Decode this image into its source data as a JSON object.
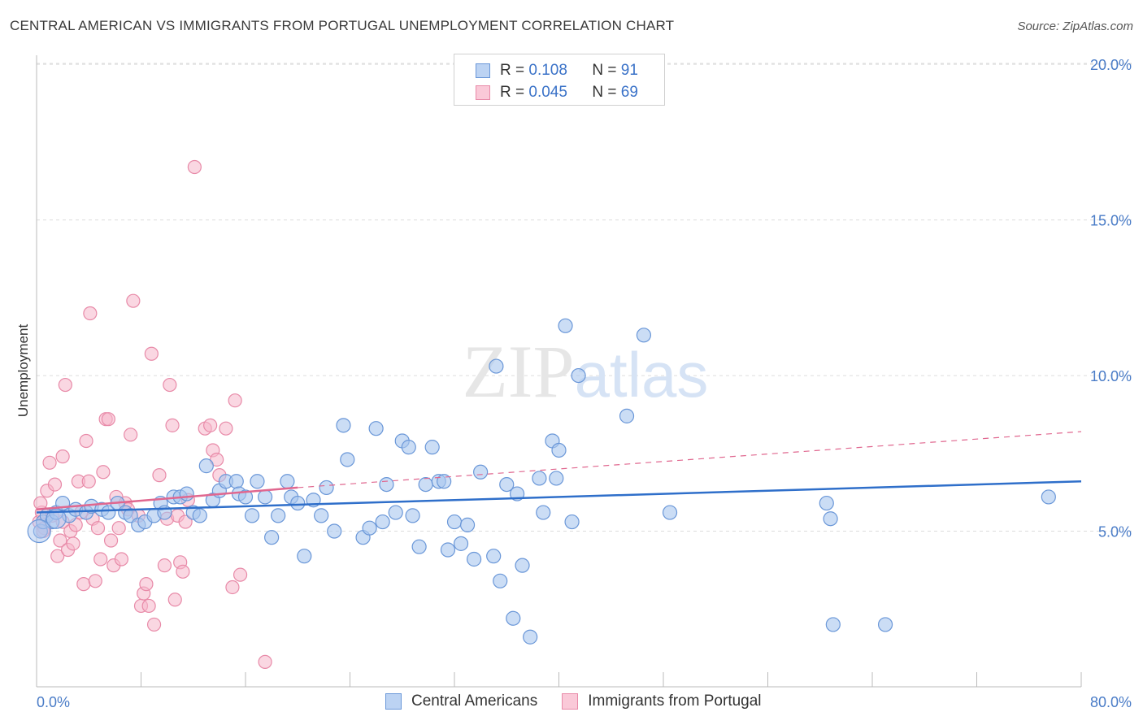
{
  "title": "CENTRAL AMERICAN VS IMMIGRANTS FROM PORTUGAL UNEMPLOYMENT CORRELATION CHART",
  "source": "Source: ZipAtlas.com",
  "legend": {
    "r_label": "R =",
    "n_label": "N =",
    "rows": [
      {
        "r": "0.108",
        "n": "91"
      },
      {
        "r": "0.045",
        "n": "69"
      }
    ]
  },
  "colors": {
    "blue_fill": "#a9c6ef",
    "blue_stroke": "#6a97d8",
    "blue_line": "#2f6fca",
    "pink_fill": "#f6b6cb",
    "pink_stroke": "#e88aa8",
    "pink_line": "#e0678f",
    "tick_text": "#4a7cc7"
  },
  "chart_data": {
    "type": "scatter",
    "xlabel": "",
    "ylabel": "Unemployment",
    "xlim": [
      0,
      80
    ],
    "ylim": [
      0,
      20.5
    ],
    "x_tick_labels": [
      "0.0%",
      "80.0%"
    ],
    "y_ticks": [
      5,
      10,
      15,
      20
    ],
    "y_tick_labels": [
      "5.0%",
      "10.0%",
      "15.0%",
      "20.0%"
    ],
    "grid": "horizontal dashed",
    "legend_position": "top-center",
    "watermark": "ZIPatlas",
    "series": [
      {
        "name": "Central Americans",
        "color": "#6a97d8",
        "trend": {
          "x": [
            0,
            80
          ],
          "y": [
            5.6,
            6.6
          ]
        },
        "points": [
          [
            0.3,
            5.0
          ],
          [
            0.5,
            5.3
          ],
          [
            0.8,
            5.5
          ],
          [
            1.2,
            5.3
          ],
          [
            1.5,
            5.6
          ],
          [
            2.0,
            5.9
          ],
          [
            2.5,
            5.5
          ],
          [
            3.0,
            5.7
          ],
          [
            3.8,
            5.6
          ],
          [
            4.2,
            5.8
          ],
          [
            5.0,
            5.7
          ],
          [
            5.5,
            5.6
          ],
          [
            6.2,
            5.9
          ],
          [
            6.8,
            5.6
          ],
          [
            7.2,
            5.5
          ],
          [
            7.8,
            5.2
          ],
          [
            8.3,
            5.3
          ],
          [
            9.0,
            5.5
          ],
          [
            9.5,
            5.9
          ],
          [
            9.8,
            5.6
          ],
          [
            10.5,
            6.1
          ],
          [
            11.0,
            6.1
          ],
          [
            11.5,
            6.2
          ],
          [
            12.0,
            5.6
          ],
          [
            12.5,
            5.5
          ],
          [
            13.0,
            7.1
          ],
          [
            13.5,
            6.0
          ],
          [
            14.0,
            6.3
          ],
          [
            14.5,
            6.6
          ],
          [
            15.3,
            6.6
          ],
          [
            15.5,
            6.2
          ],
          [
            16.0,
            6.1
          ],
          [
            16.5,
            5.5
          ],
          [
            16.9,
            6.6
          ],
          [
            17.5,
            6.1
          ],
          [
            18.0,
            4.8
          ],
          [
            18.5,
            5.5
          ],
          [
            19.2,
            6.6
          ],
          [
            19.5,
            6.1
          ],
          [
            20.0,
            5.9
          ],
          [
            20.5,
            4.2
          ],
          [
            21.2,
            6.0
          ],
          [
            21.8,
            5.5
          ],
          [
            22.2,
            6.4
          ],
          [
            22.8,
            5.0
          ],
          [
            23.5,
            8.4
          ],
          [
            23.8,
            7.3
          ],
          [
            25.0,
            4.8
          ],
          [
            25.5,
            5.1
          ],
          [
            26.0,
            8.3
          ],
          [
            26.5,
            5.3
          ],
          [
            26.8,
            6.5
          ],
          [
            27.5,
            5.6
          ],
          [
            28.0,
            7.9
          ],
          [
            28.5,
            7.7
          ],
          [
            28.8,
            5.5
          ],
          [
            29.3,
            4.5
          ],
          [
            29.8,
            6.5
          ],
          [
            30.3,
            7.7
          ],
          [
            30.8,
            6.6
          ],
          [
            31.2,
            6.6
          ],
          [
            31.5,
            4.4
          ],
          [
            32.0,
            5.3
          ],
          [
            32.5,
            4.6
          ],
          [
            33.0,
            5.2
          ],
          [
            33.5,
            4.1
          ],
          [
            34.0,
            6.9
          ],
          [
            35.0,
            4.2
          ],
          [
            35.2,
            10.3
          ],
          [
            35.5,
            3.4
          ],
          [
            36.0,
            6.5
          ],
          [
            36.5,
            2.2
          ],
          [
            36.8,
            6.2
          ],
          [
            37.2,
            3.9
          ],
          [
            37.8,
            1.6
          ],
          [
            38.5,
            6.7
          ],
          [
            38.8,
            5.6
          ],
          [
            39.5,
            7.9
          ],
          [
            39.8,
            6.7
          ],
          [
            40.0,
            7.6
          ],
          [
            40.5,
            11.6
          ],
          [
            41.0,
            5.3
          ],
          [
            41.5,
            10.0
          ],
          [
            45.2,
            8.7
          ],
          [
            46.5,
            11.3
          ],
          [
            48.5,
            5.6
          ],
          [
            60.5,
            5.9
          ],
          [
            60.8,
            5.4
          ],
          [
            61.0,
            2.0
          ],
          [
            65.0,
            2.0
          ],
          [
            77.5,
            6.1
          ]
        ]
      },
      {
        "name": "Immigrants from Portugal",
        "color": "#e88aa8",
        "trend_solid": {
          "x": [
            0,
            20
          ],
          "y": [
            5.7,
            6.4
          ]
        },
        "trend_dashed": {
          "x": [
            20,
            80
          ],
          "y": [
            6.4,
            8.2
          ]
        },
        "points": [
          [
            0.2,
            5.3
          ],
          [
            0.4,
            5.6
          ],
          [
            0.6,
            5.1
          ],
          [
            0.8,
            6.3
          ],
          [
            1.0,
            7.2
          ],
          [
            1.2,
            5.5
          ],
          [
            1.4,
            6.5
          ],
          [
            1.6,
            4.2
          ],
          [
            1.8,
            4.7
          ],
          [
            2.0,
            5.3
          ],
          [
            2.0,
            7.4
          ],
          [
            2.2,
            9.7
          ],
          [
            2.4,
            4.4
          ],
          [
            2.6,
            5.0
          ],
          [
            2.8,
            4.6
          ],
          [
            3.0,
            5.2
          ],
          [
            3.2,
            6.6
          ],
          [
            3.4,
            5.6
          ],
          [
            3.6,
            3.3
          ],
          [
            3.8,
            7.9
          ],
          [
            4.0,
            6.6
          ],
          [
            4.1,
            12.0
          ],
          [
            4.3,
            5.4
          ],
          [
            4.5,
            3.4
          ],
          [
            4.7,
            5.1
          ],
          [
            4.9,
            4.1
          ],
          [
            5.1,
            6.9
          ],
          [
            5.3,
            8.6
          ],
          [
            5.5,
            8.6
          ],
          [
            5.7,
            4.7
          ],
          [
            5.9,
            3.9
          ],
          [
            6.1,
            6.1
          ],
          [
            6.3,
            5.1
          ],
          [
            6.5,
            4.1
          ],
          [
            6.8,
            5.9
          ],
          [
            7.0,
            5.7
          ],
          [
            7.2,
            8.1
          ],
          [
            7.4,
            12.4
          ],
          [
            7.8,
            5.5
          ],
          [
            8.0,
            2.6
          ],
          [
            8.2,
            3.0
          ],
          [
            8.4,
            3.3
          ],
          [
            8.6,
            2.6
          ],
          [
            8.8,
            10.7
          ],
          [
            9.0,
            2.0
          ],
          [
            9.4,
            6.8
          ],
          [
            9.8,
            3.9
          ],
          [
            10.0,
            5.4
          ],
          [
            10.2,
            9.7
          ],
          [
            10.4,
            8.4
          ],
          [
            10.6,
            2.8
          ],
          [
            10.8,
            5.5
          ],
          [
            11.0,
            4.0
          ],
          [
            11.2,
            3.7
          ],
          [
            11.4,
            5.3
          ],
          [
            11.6,
            6.0
          ],
          [
            12.1,
            16.7
          ],
          [
            12.9,
            8.3
          ],
          [
            13.3,
            8.4
          ],
          [
            13.5,
            7.6
          ],
          [
            13.8,
            7.3
          ],
          [
            14.0,
            6.8
          ],
          [
            14.5,
            8.3
          ],
          [
            15.0,
            3.2
          ],
          [
            15.2,
            9.2
          ],
          [
            15.6,
            3.6
          ],
          [
            17.5,
            0.8
          ],
          [
            0.3,
            5.9
          ],
          [
            0.5,
            5.0
          ]
        ]
      }
    ]
  }
}
